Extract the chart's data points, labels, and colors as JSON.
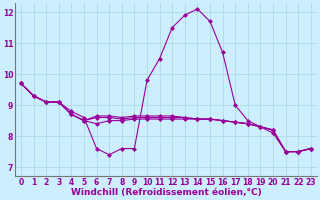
{
  "title": "",
  "xlabel": "Windchill (Refroidissement éolien,°C)",
  "bg_color": "#cceeff",
  "grid_color": "#aadddd",
  "line_color": "#990099",
  "xlim": [
    -0.5,
    23.5
  ],
  "ylim": [
    6.7,
    12.3
  ],
  "xticks": [
    0,
    1,
    2,
    3,
    4,
    5,
    6,
    7,
    8,
    9,
    10,
    11,
    12,
    13,
    14,
    15,
    16,
    17,
    18,
    19,
    20,
    21,
    22,
    23
  ],
  "yticks": [
    7,
    8,
    9,
    10,
    11,
    12
  ],
  "lines": [
    [
      9.7,
      9.3,
      9.1,
      9.1,
      8.8,
      8.6,
      7.6,
      7.4,
      7.6,
      7.6,
      9.8,
      10.5,
      11.5,
      11.9,
      12.1,
      11.7,
      10.7,
      9.0,
      8.5,
      8.3,
      8.1,
      7.5,
      7.5,
      7.6
    ],
    [
      9.7,
      9.3,
      9.1,
      9.1,
      8.7,
      8.5,
      8.4,
      8.5,
      8.5,
      8.55,
      8.55,
      8.55,
      8.55,
      8.55,
      8.55,
      8.55,
      8.5,
      8.45,
      8.4,
      8.3,
      8.2,
      7.5,
      7.5,
      7.6
    ],
    [
      9.7,
      9.3,
      9.1,
      9.1,
      8.7,
      8.5,
      8.6,
      8.6,
      8.55,
      8.6,
      8.6,
      8.6,
      8.6,
      8.6,
      8.55,
      8.55,
      8.5,
      8.45,
      8.4,
      8.3,
      8.2,
      7.5,
      7.5,
      7.6
    ],
    [
      9.7,
      9.3,
      9.1,
      9.1,
      8.7,
      8.5,
      8.65,
      8.65,
      8.6,
      8.65,
      8.65,
      8.65,
      8.65,
      8.6,
      8.55,
      8.55,
      8.5,
      8.45,
      8.4,
      8.3,
      8.2,
      7.5,
      7.5,
      7.6
    ]
  ],
  "marker": "D",
  "markersize": 2.0,
  "linewidth": 0.8,
  "tick_fontsize": 5.5,
  "xlabel_fontsize": 6.5,
  "tick_color": "#990099",
  "xlabel_color": "#990099"
}
